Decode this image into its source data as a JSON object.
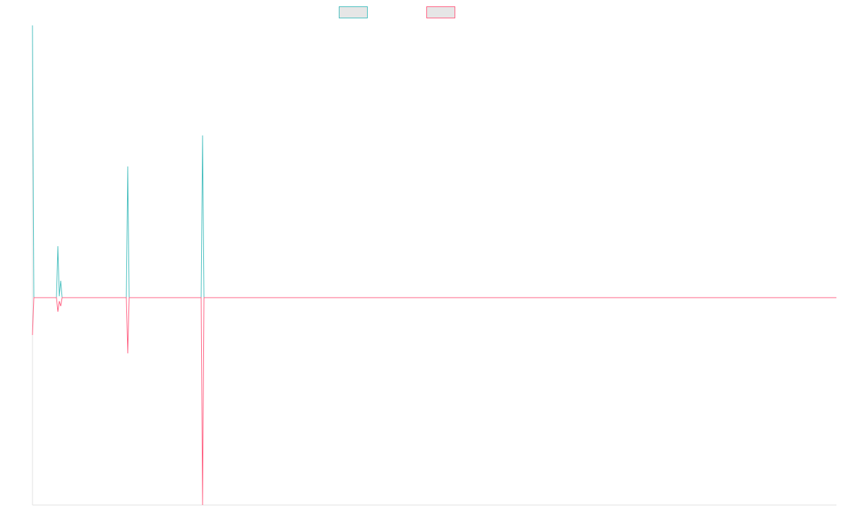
{
  "chart_data": {
    "type": "line",
    "x": [
      0,
      2,
      34,
      36,
      38,
      40,
      42,
      133,
      135,
      137,
      239,
      241,
      243,
      1139
    ],
    "xlim": [
      0,
      1139
    ],
    "ylim": [
      -294,
      386
    ],
    "series": [
      {
        "color": "#4bc0c0",
        "values": [
          386,
          0,
          0,
          73,
          2,
          24,
          0,
          0,
          186,
          0,
          0,
          230,
          0,
          0
        ]
      },
      {
        "color": "#ff6384",
        "values": [
          -53,
          0,
          0,
          -20,
          -5,
          -12,
          0,
          0,
          -79,
          0,
          0,
          -294,
          0,
          0
        ]
      }
    ],
    "legend": "top"
  }
}
